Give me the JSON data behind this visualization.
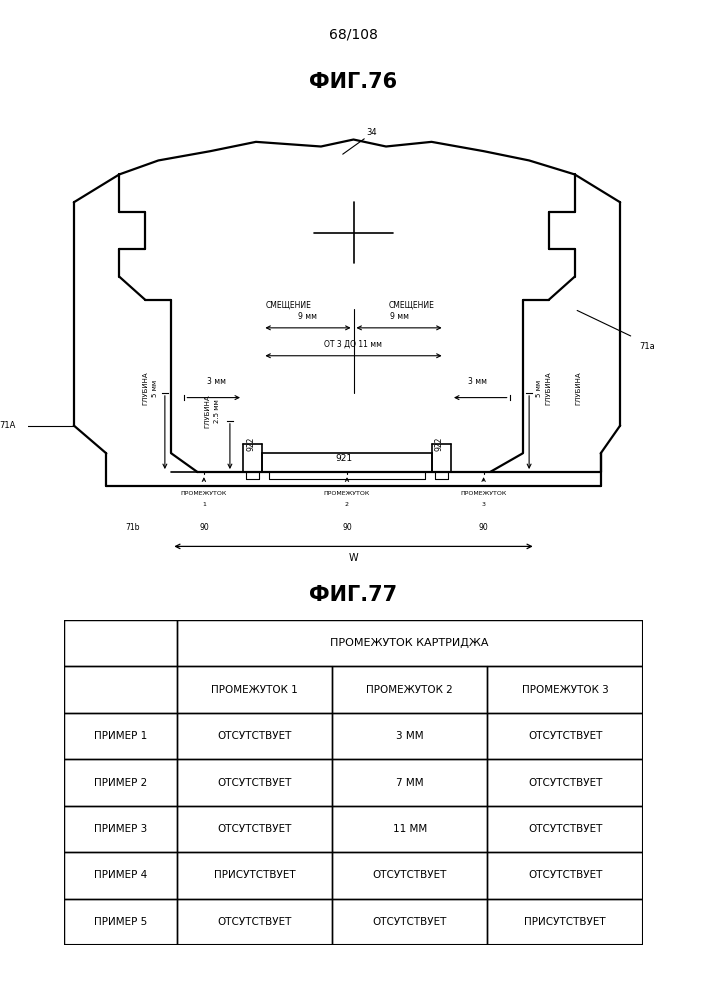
{
  "page_label": "68/108",
  "fig76_title": "ФИГ.76",
  "fig77_title": "ФИГ.77",
  "background_color": "#ffffff",
  "text_color": "#000000",
  "table": {
    "header_row1": [
      "",
      "ПРОМЕЖУТОК КАРТРИДЖА"
    ],
    "header_row2": [
      "",
      "ПРОМЕЖУТОК 1",
      "ПРОМЕЖУТОК 2",
      "ПРОМЕЖУТОК 3"
    ],
    "rows": [
      [
        "ПРИМЕР 1",
        "ОТСУТСТВУЕТ",
        "3 ММ",
        "ОТСУТСТВУЕТ"
      ],
      [
        "ПРИМЕР 2",
        "ОТСУТСТВУЕТ",
        "7 ММ",
        "ОТСУТСТВУЕТ"
      ],
      [
        "ПРИМЕР 3",
        "ОТСУТСТВУЕТ",
        "11 ММ",
        "ОТСУТСТВУЕТ"
      ],
      [
        "ПРИМЕР 4",
        "ПРИСУТСТВУЕТ",
        "ОТСУТСТВУЕТ",
        "ОТСУТСТВУЕТ"
      ],
      [
        "ПРИМЕР 5",
        "ОТСУТСТВУЕТ",
        "ОТСУТСТВУЕТ",
        "ПРИСУТСТВУЕТ"
      ]
    ]
  }
}
